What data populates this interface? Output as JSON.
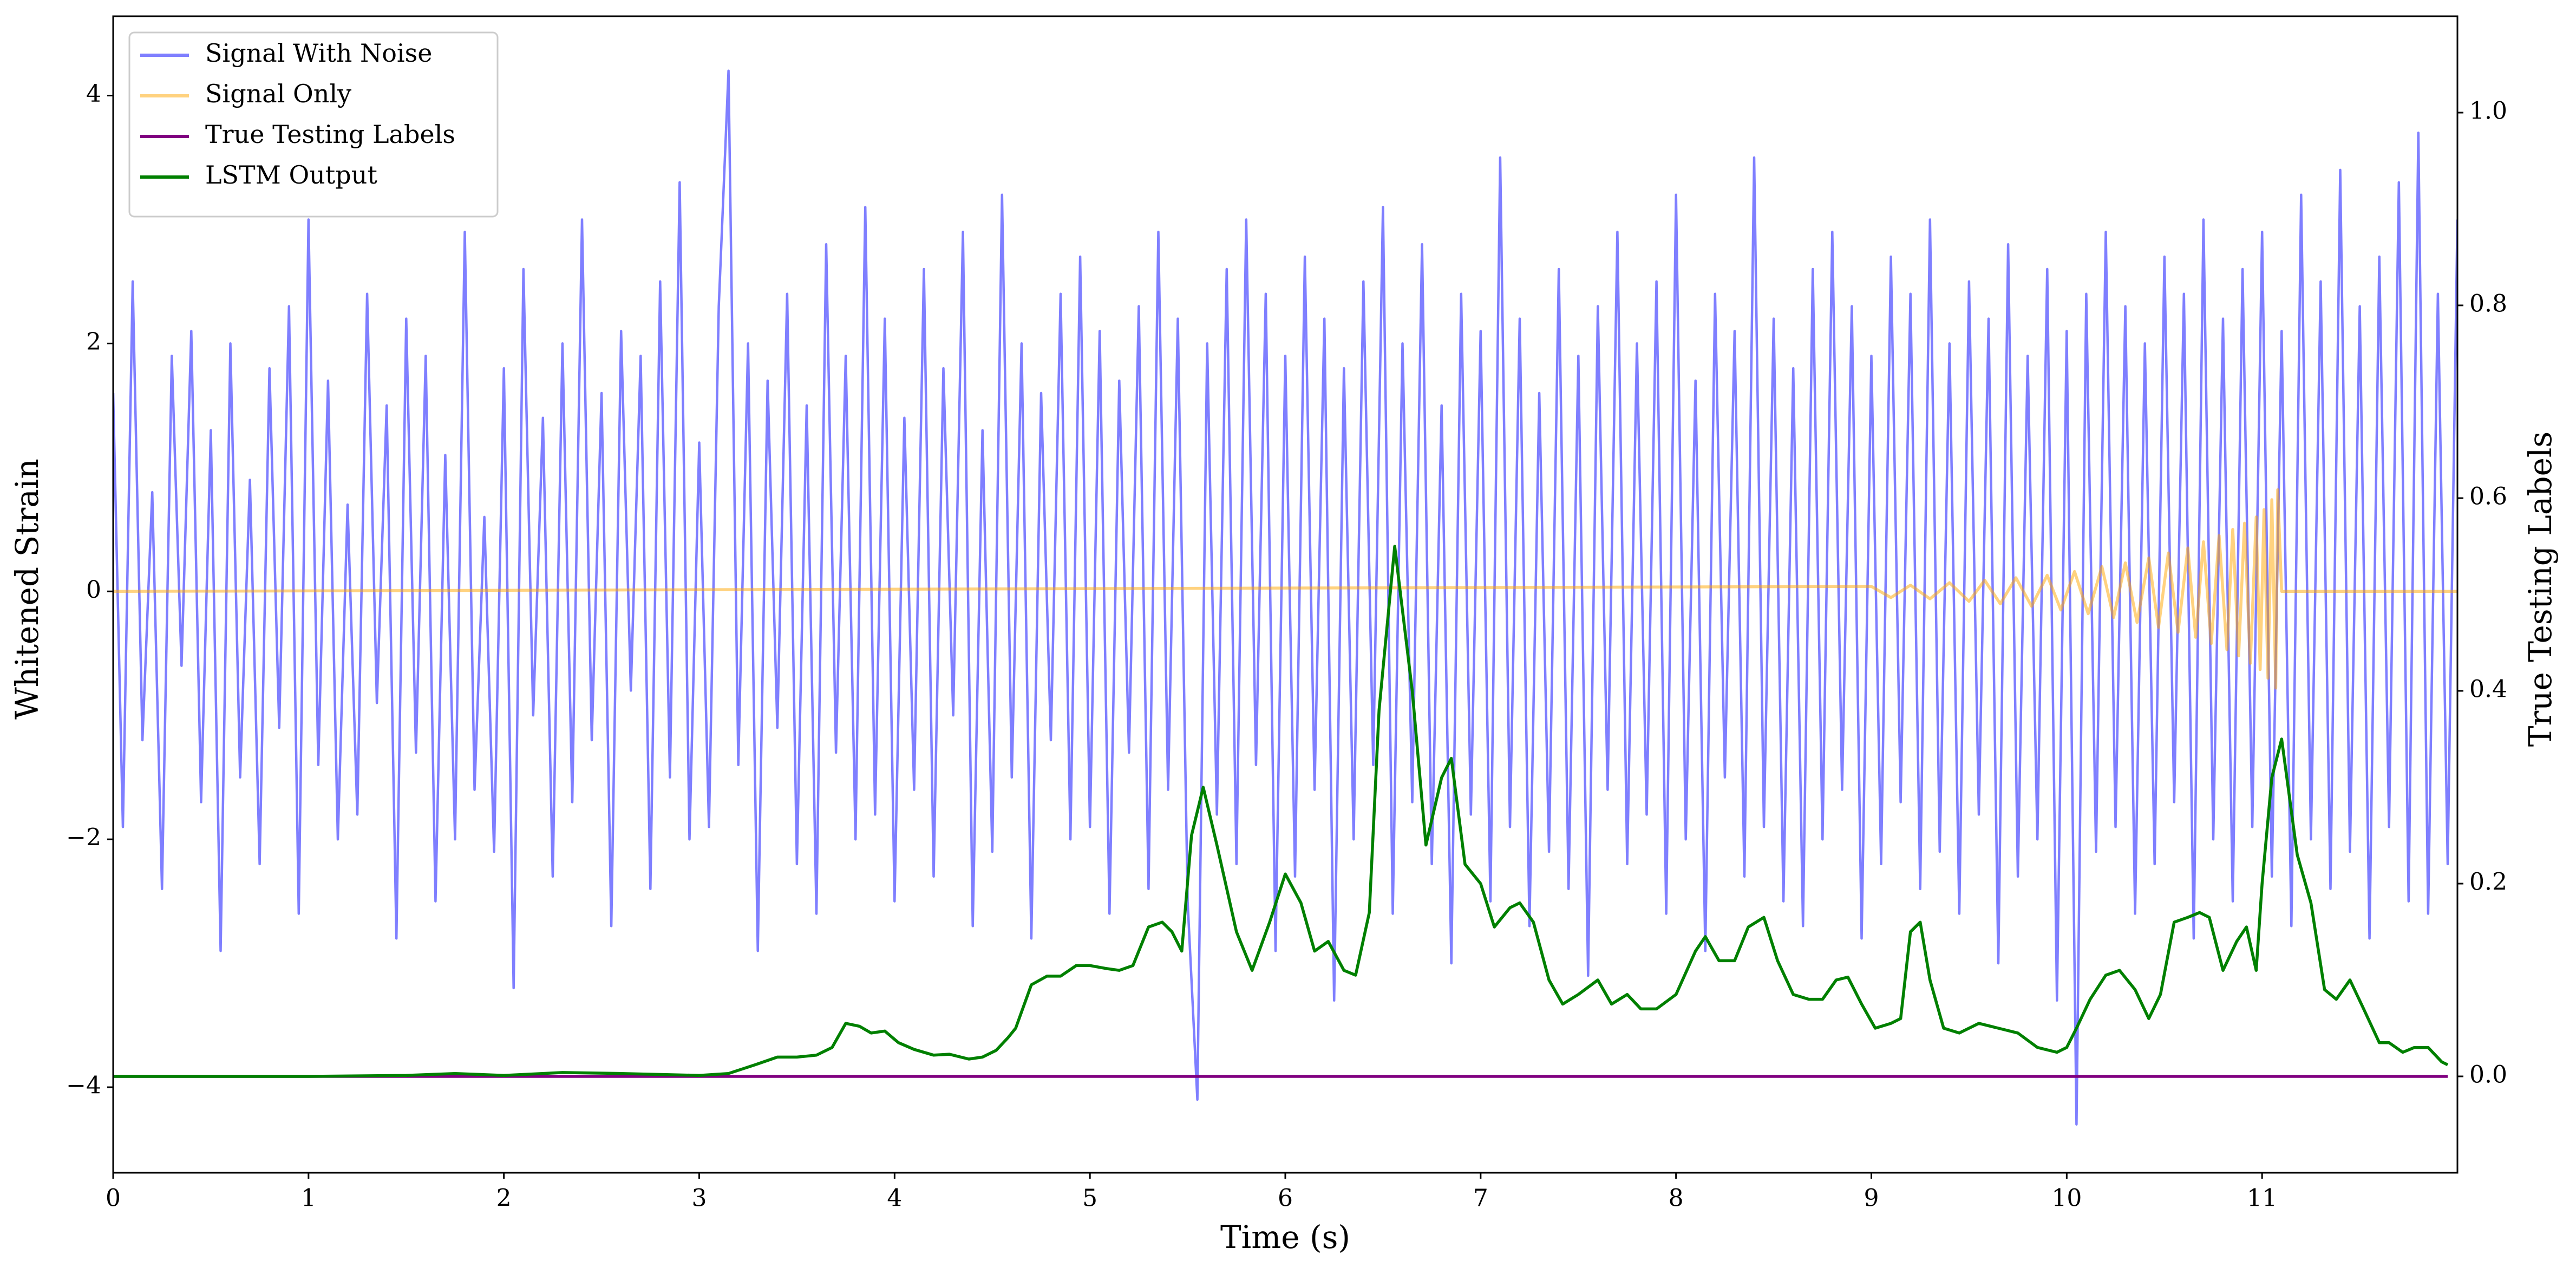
{
  "chart_data": {
    "type": "line",
    "xlabel": "Time (s)",
    "ylabel": "Whitened Strain",
    "y2label": "True Testing Labels",
    "xlim": [
      0,
      12
    ],
    "xticks": [
      0,
      1,
      2,
      3,
      4,
      5,
      6,
      7,
      8,
      9,
      10,
      11
    ],
    "ylim": [
      -4.69,
      4.64
    ],
    "yticks": [
      {
        "value": -4,
        "label": "−4"
      },
      {
        "value": -2,
        "label": "−2"
      },
      0,
      2,
      4
    ],
    "y2lim": [
      -0.1,
      1.1
    ],
    "y2ticks": [
      {
        "value": 0,
        "label": "0.0"
      },
      {
        "value": 0.2,
        "label": "0.2"
      },
      {
        "value": 0.4,
        "label": "0.4"
      },
      {
        "value": 0.6,
        "label": "0.6"
      },
      {
        "value": 0.8,
        "label": "0.8"
      },
      {
        "value": 1.0,
        "label": "1.0"
      }
    ],
    "legend": "upper left",
    "series": [
      {
        "name": "Signal With Noise",
        "color": "#0000ff",
        "alpha": 0.5,
        "x": [
          0,
          0.05,
          0.1,
          0.15,
          0.2,
          0.25,
          0.3,
          0.35,
          0.4,
          0.45,
          0.5,
          0.55,
          0.6,
          0.65,
          0.7,
          0.75,
          0.8,
          0.85,
          0.9,
          0.95,
          1,
          1.05,
          1.1,
          1.15,
          1.2,
          1.25,
          1.3,
          1.35,
          1.4,
          1.45,
          1.5,
          1.55,
          1.6,
          1.65,
          1.7,
          1.75,
          1.8,
          1.85,
          1.9,
          1.95,
          2,
          2.05,
          2.1,
          2.15,
          2.2,
          2.25,
          2.3,
          2.35,
          2.4,
          2.45,
          2.5,
          2.55,
          2.6,
          2.65,
          2.7,
          2.75,
          2.8,
          2.85,
          2.9,
          2.95,
          3,
          3.05,
          3.1,
          3.15,
          3.2,
          3.25,
          3.3,
          3.35,
          3.4,
          3.45,
          3.5,
          3.55,
          3.6,
          3.65,
          3.7,
          3.75,
          3.8,
          3.85,
          3.9,
          3.95,
          4,
          4.05,
          4.1,
          4.15,
          4.2,
          4.25,
          4.3,
          4.35,
          4.4,
          4.45,
          4.5,
          4.55,
          4.6,
          4.65,
          4.7,
          4.75,
          4.8,
          4.85,
          4.9,
          4.95,
          5,
          5.05,
          5.1,
          5.15,
          5.2,
          5.25,
          5.3,
          5.35,
          5.4,
          5.45,
          5.5,
          5.55,
          5.6,
          5.65,
          5.7,
          5.75,
          5.8,
          5.85,
          5.9,
          5.95,
          6,
          6.05,
          6.1,
          6.15,
          6.2,
          6.25,
          6.3,
          6.35,
          6.4,
          6.45,
          6.5,
          6.55,
          6.6,
          6.65,
          6.7,
          6.75,
          6.8,
          6.85,
          6.9,
          6.95,
          7,
          7.05,
          7.1,
          7.15,
          7.2,
          7.25,
          7.3,
          7.35,
          7.4,
          7.45,
          7.5,
          7.55,
          7.6,
          7.65,
          7.7,
          7.75,
          7.8,
          7.85,
          7.9,
          7.95,
          8,
          8.05,
          8.1,
          8.15,
          8.2,
          8.25,
          8.3,
          8.35,
          8.4,
          8.45,
          8.5,
          8.55,
          8.6,
          8.65,
          8.7,
          8.75,
          8.8,
          8.85,
          8.9,
          8.95,
          9,
          9.05,
          9.1,
          9.15,
          9.2,
          9.25,
          9.3,
          9.35,
          9.4,
          9.45,
          9.5,
          9.55,
          9.6,
          9.65,
          9.7,
          9.75,
          9.8,
          9.85,
          9.9,
          9.95,
          10,
          10.05,
          10.1,
          10.15,
          10.2,
          10.25,
          10.3,
          10.35,
          10.4,
          10.45,
          10.5,
          10.55,
          10.6,
          10.65,
          10.7,
          10.75,
          10.8,
          10.85,
          10.9,
          10.95,
          11,
          11.05,
          11.1,
          11.15,
          11.2,
          11.25,
          11.3,
          11.35,
          11.4,
          11.45,
          11.5,
          11.55,
          11.6,
          11.65,
          11.7,
          11.75,
          11.8,
          11.85,
          11.9,
          11.95,
          12
        ],
        "values": [
          1.6,
          -1.9,
          2.5,
          -1.2,
          0.8,
          -2.4,
          1.9,
          -0.6,
          2.1,
          -1.7,
          1.3,
          -2.9,
          2.0,
          -1.5,
          0.9,
          -2.2,
          1.8,
          -1.1,
          2.3,
          -2.6,
          3.0,
          -1.4,
          1.7,
          -2.0,
          0.7,
          -1.8,
          2.4,
          -0.9,
          1.5,
          -2.8,
          2.2,
          -1.3,
          1.9,
          -2.5,
          1.1,
          -2.0,
          2.9,
          -1.6,
          0.6,
          -2.1,
          1.8,
          -3.2,
          2.6,
          -1.0,
          1.4,
          -2.3,
          2.0,
          -1.7,
          3.0,
          -1.2,
          1.6,
          -2.7,
          2.1,
          -0.8,
          1.9,
          -2.4,
          2.5,
          -1.5,
          3.3,
          -2.0,
          1.2,
          -1.9,
          2.3,
          4.2,
          -1.4,
          2.0,
          -2.9,
          1.7,
          -1.1,
          2.4,
          -2.2,
          1.5,
          -2.6,
          2.8,
          -1.3,
          1.9,
          -2.0,
          3.1,
          -1.8,
          2.2,
          -2.5,
          1.4,
          -1.6,
          2.6,
          -2.3,
          1.8,
          -1.0,
          2.9,
          -2.7,
          1.3,
          -2.1,
          3.2,
          -1.5,
          2.0,
          -2.8,
          1.6,
          -1.2,
          2.4,
          -2.0,
          2.7,
          -1.9,
          2.1,
          -2.6,
          1.7,
          -1.3,
          2.3,
          -2.4,
          2.9,
          -1.6,
          2.2,
          -2.5,
          -4.1,
          2.0,
          -1.8,
          2.6,
          -2.2,
          3.0,
          -1.4,
          2.4,
          -2.9,
          1.9,
          -2.3,
          2.7,
          -1.6,
          2.2,
          -3.3,
          1.8,
          -2.0,
          2.5,
          -1.4,
          3.1,
          -2.6,
          2.0,
          -1.7,
          2.8,
          -2.2,
          1.5,
          -3.0,
          2.4,
          -1.8,
          2.1,
          -2.5,
          3.5,
          -1.9,
          2.2,
          -2.7,
          1.6,
          -2.1,
          2.6,
          -2.4,
          1.9,
          -3.1,
          2.3,
          -1.6,
          2.9,
          -2.2,
          2.0,
          -1.8,
          2.5,
          -2.6,
          3.2,
          -2.0,
          1.7,
          -2.9,
          2.4,
          -1.5,
          2.1,
          -2.3,
          3.5,
          -1.9,
          2.2,
          -2.5,
          1.8,
          -2.7,
          2.6,
          -2.0,
          2.9,
          -1.6,
          2.3,
          -2.8,
          1.9,
          -2.2,
          2.7,
          -1.7,
          2.4,
          -2.4,
          3.0,
          -2.1,
          2.0,
          -2.6,
          2.5,
          -1.8,
          2.2,
          -3.0,
          2.8,
          -2.3,
          1.9,
          -2.0,
          2.6,
          -3.3,
          2.1,
          -4.3,
          2.4,
          -2.1,
          2.9,
          -1.9,
          2.3,
          -2.6,
          2.0,
          -2.2,
          2.7,
          -1.7,
          2.4,
          -2.8,
          3.0,
          -2.0,
          2.2,
          -2.5,
          2.6,
          -1.9,
          2.9,
          -2.3,
          2.1,
          -2.7,
          3.2,
          -2.0,
          2.5,
          -2.4,
          3.4,
          -2.1,
          2.3,
          -2.8,
          2.7,
          -1.9,
          3.3,
          -2.5,
          3.7,
          -2.6,
          2.4,
          -2.2,
          3.0
        ]
      },
      {
        "name": "Signal Only",
        "color": "#ffa500",
        "alpha": 0.5,
        "x": [
          0,
          9.0,
          9.1,
          9.2,
          9.3,
          9.4,
          9.5,
          9.58,
          9.66,
          9.74,
          9.82,
          9.9,
          9.97,
          10.04,
          10.11,
          10.18,
          10.24,
          10.3,
          10.36,
          10.42,
          10.47,
          10.52,
          10.57,
          10.62,
          10.66,
          10.7,
          10.74,
          10.78,
          10.82,
          10.85,
          10.88,
          10.91,
          10.94,
          10.97,
          10.99,
          11.01,
          11.03,
          11.05,
          11.07,
          11.08,
          11.1,
          12
        ],
        "values": [
          0,
          0.04,
          -0.05,
          0.05,
          -0.06,
          0.07,
          -0.08,
          0.09,
          -0.1,
          0.11,
          -0.12,
          0.13,
          -0.15,
          0.16,
          -0.18,
          0.2,
          -0.21,
          0.23,
          -0.25,
          0.27,
          -0.29,
          0.31,
          -0.33,
          0.35,
          -0.37,
          0.4,
          -0.42,
          0.45,
          -0.47,
          0.5,
          -0.52,
          0.55,
          -0.58,
          0.6,
          -0.63,
          0.66,
          -0.7,
          0.74,
          -0.78,
          0.82,
          0,
          0
        ]
      },
      {
        "name": "True Testing Labels",
        "color": "#800080",
        "axis": "y2",
        "x": [
          0,
          11.95
        ],
        "values": [
          0,
          0
        ]
      },
      {
        "name": "LSTM Output",
        "color": "#008000",
        "axis": "y2",
        "x": [
          0,
          0.5,
          1,
          1.5,
          1.75,
          2,
          2.3,
          2.6,
          3.0,
          3.15,
          3.3,
          3.4,
          3.5,
          3.6,
          3.68,
          3.75,
          3.82,
          3.88,
          3.95,
          4.02,
          4.1,
          4.2,
          4.28,
          4.38,
          4.45,
          4.52,
          4.58,
          4.62,
          4.7,
          4.78,
          4.85,
          4.93,
          5.0,
          5.08,
          5.15,
          5.22,
          5.3,
          5.37,
          5.42,
          5.47,
          5.52,
          5.58,
          5.65,
          5.75,
          5.83,
          5.92,
          6.0,
          6.08,
          6.15,
          6.22,
          6.3,
          6.36,
          6.43,
          6.48,
          6.56,
          6.65,
          6.72,
          6.8,
          6.85,
          6.92,
          7.0,
          7.07,
          7.15,
          7.2,
          7.27,
          7.35,
          7.42,
          7.5,
          7.6,
          7.67,
          7.75,
          7.82,
          7.9,
          8.0,
          8.1,
          8.15,
          8.22,
          8.3,
          8.37,
          8.45,
          8.52,
          8.6,
          8.68,
          8.75,
          8.82,
          8.88,
          8.95,
          9.02,
          9.1,
          9.15,
          9.2,
          9.25,
          9.3,
          9.37,
          9.45,
          9.55,
          9.65,
          9.75,
          9.85,
          9.95,
          10.0,
          10.05,
          10.12,
          10.2,
          10.27,
          10.35,
          10.42,
          10.48,
          10.55,
          10.62,
          10.68,
          10.73,
          10.8,
          10.87,
          10.92,
          10.97,
          11.0,
          11.05,
          11.1,
          11.18,
          11.25,
          11.32,
          11.38,
          11.45,
          11.52,
          11.6,
          11.65,
          11.72,
          11.78,
          11.85,
          11.92,
          11.95
        ],
        "values": [
          0,
          0,
          0,
          0.001,
          0.003,
          0.001,
          0.004,
          0.003,
          0.001,
          0.003,
          0.013,
          0.02,
          0.02,
          0.022,
          0.03,
          0.055,
          0.052,
          0.045,
          0.047,
          0.035,
          0.028,
          0.022,
          0.023,
          0.018,
          0.02,
          0.027,
          0.04,
          0.05,
          0.095,
          0.104,
          0.104,
          0.115,
          0.115,
          0.112,
          0.11,
          0.115,
          0.155,
          0.16,
          0.15,
          0.13,
          0.25,
          0.3,
          0.24,
          0.15,
          0.11,
          0.16,
          0.21,
          0.18,
          0.13,
          0.14,
          0.11,
          0.105,
          0.17,
          0.38,
          0.55,
          0.4,
          0.24,
          0.31,
          0.33,
          0.22,
          0.2,
          0.155,
          0.175,
          0.18,
          0.16,
          0.1,
          0.075,
          0.085,
          0.1,
          0.075,
          0.085,
          0.07,
          0.07,
          0.085,
          0.13,
          0.145,
          0.12,
          0.12,
          0.155,
          0.165,
          0.12,
          0.085,
          0.08,
          0.08,
          0.1,
          0.103,
          0.075,
          0.05,
          0.055,
          0.06,
          0.15,
          0.16,
          0.1,
          0.05,
          0.045,
          0.055,
          0.05,
          0.045,
          0.03,
          0.025,
          0.03,
          0.05,
          0.08,
          0.105,
          0.11,
          0.09,
          0.06,
          0.085,
          0.16,
          0.165,
          0.17,
          0.165,
          0.11,
          0.14,
          0.155,
          0.11,
          0.2,
          0.31,
          0.35,
          0.23,
          0.18,
          0.09,
          0.08,
          0.1,
          0.07,
          0.035,
          0.035,
          0.025,
          0.03,
          0.03,
          0.015,
          0.012
        ]
      }
    ]
  }
}
